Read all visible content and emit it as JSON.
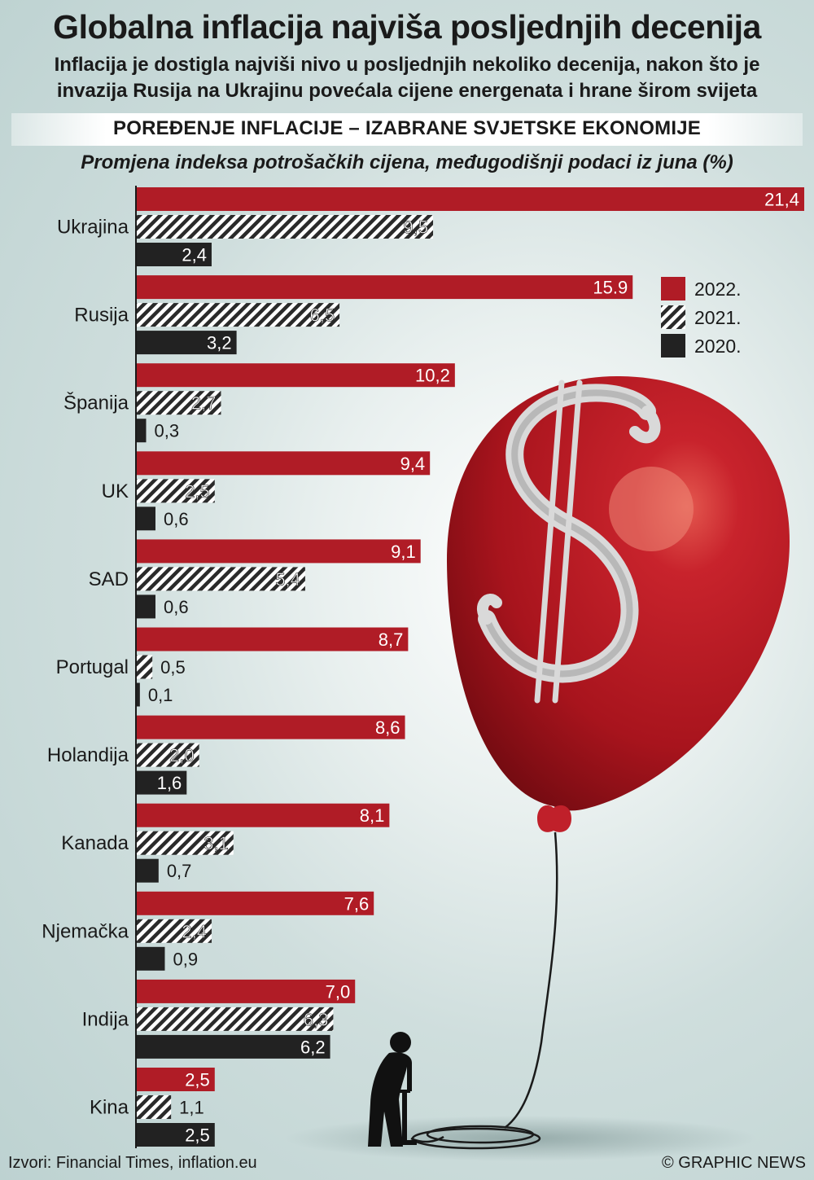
{
  "header": {
    "title": "Globalna inflacija najviša posljednjih decenija",
    "subtitle": "Inflacija je dostigla najviši nivo u posljednjih nekoliko decenija, nakon što je invazija Rusija na Ukrajinu povećala cijene energenata i hrane širom svijeta",
    "banner": "POREĐENJE INFLACIJE – IZABRANE SVJETSKE EKONOMIJE"
  },
  "footer": {
    "sources": "Izvori: Financial Times, inflation.eu",
    "credit": "© GRAPHIC NEWS"
  },
  "colors": {
    "y2022": "#b01c26",
    "y2021_stripe": "#2a2a2a",
    "y2020": "#222222"
  },
  "chart_data": {
    "type": "bar",
    "orientation": "horizontal",
    "title": "Promjena indeksa potrošačkih cijena, međugodišnji podaci iz juna (%)",
    "categories": [
      "Ukrajina",
      "Rusija",
      "Španija",
      "UK",
      "SAD",
      "Portugal",
      "Holandija",
      "Kanada",
      "Njemačka",
      "Indija",
      "Kina"
    ],
    "series": [
      {
        "name": "2022.",
        "style": "solid-red",
        "values": [
          21.4,
          15.9,
          10.2,
          9.4,
          9.1,
          8.7,
          8.6,
          8.1,
          7.6,
          7.0,
          2.5
        ],
        "labels": [
          "21,4",
          "15.9",
          "10,2",
          "9,4",
          "9,1",
          "8,7",
          "8,6",
          "8,1",
          "7,6",
          "7,0",
          "2,5"
        ]
      },
      {
        "name": "2021.",
        "style": "hatched",
        "values": [
          9.5,
          6.5,
          2.7,
          2.5,
          5.4,
          0.5,
          2.0,
          3.1,
          2.4,
          6.3,
          1.1
        ],
        "labels": [
          "9,5",
          "6,5",
          "2,7",
          "2,5",
          "5,4",
          "0,5",
          "2,0",
          "3,1",
          "2,4",
          "6,3",
          "1,1"
        ]
      },
      {
        "name": "2020.",
        "style": "solid-black",
        "values": [
          2.4,
          3.2,
          0.3,
          0.6,
          0.6,
          0.1,
          1.6,
          0.7,
          0.9,
          6.2,
          2.5
        ],
        "labels": [
          "2,4",
          "3,2",
          "0,3",
          "0,6",
          "0,6",
          "0,1",
          "1,6",
          "0,7",
          "0,9",
          "6,2",
          "2,5"
        ]
      }
    ],
    "xlim": [
      0,
      21.4
    ],
    "grid": false,
    "legend": "top-right"
  }
}
